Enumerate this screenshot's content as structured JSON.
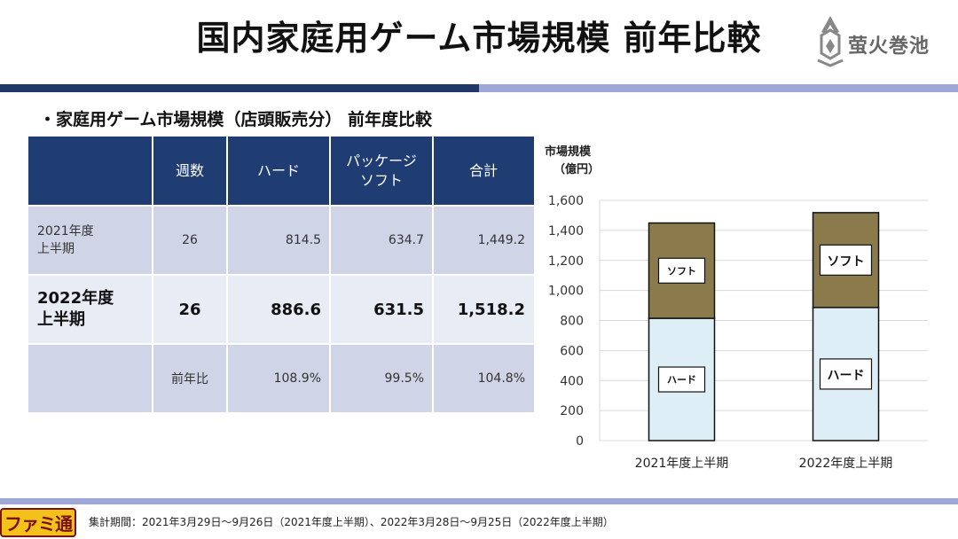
{
  "title": "国内家庭用ゲーム市場規模 前年比較",
  "logo_text": "萤火巻池",
  "subtitle": "・家庭用ゲーム市場規模（店頭販売分） 前年度比較",
  "table": {
    "headers": [
      "週数",
      "ハード",
      "パッケージ\nソフト",
      "合計"
    ],
    "rows": [
      {
        "label": "2021年度\n上半期",
        "weeks": "26",
        "hard": "814.5",
        "soft": "634.7",
        "total": "1,449.2"
      },
      {
        "label": "2022年度\n上半期",
        "weeks": "26",
        "hard": "886.6",
        "soft": "631.5",
        "total": "1,518.2"
      },
      {
        "label": "",
        "weeks": "前年比",
        "hard": "108.9%",
        "soft": "99.5%",
        "total": "104.8%"
      }
    ]
  },
  "chart_data": {
    "type": "bar",
    "stacked": true,
    "ylabel": "市場規模\n（億円）",
    "ylabel_line1": "市場規模",
    "ylabel_line2": "（億円）",
    "categories": [
      "2021年度上半期",
      "2022年度上半期"
    ],
    "series": [
      {
        "name": "ハード",
        "values": [
          814.5,
          886.6
        ],
        "color": "#deeef7"
      },
      {
        "name": "ソフト",
        "values": [
          634.7,
          631.5
        ],
        "color": "#8b7b4c"
      }
    ],
    "ylim": [
      0,
      1600
    ],
    "yticks": [
      "0",
      "200",
      "400",
      "600",
      "800",
      "1,000",
      "1,200",
      "1,400",
      "1,600"
    ],
    "grid": true,
    "grid_color": "#d9d9d9"
  },
  "footer": {
    "brand": "ファミ通",
    "note": "集計期間：2021年3月29日～9月26日（2021年度上半期）、2022年3月28日～9月25日（2022年度上半期）"
  },
  "colors": {
    "header_bg": "#1f3d73",
    "band_dark": "#20376a",
    "band_light": "#9fa6d8"
  }
}
